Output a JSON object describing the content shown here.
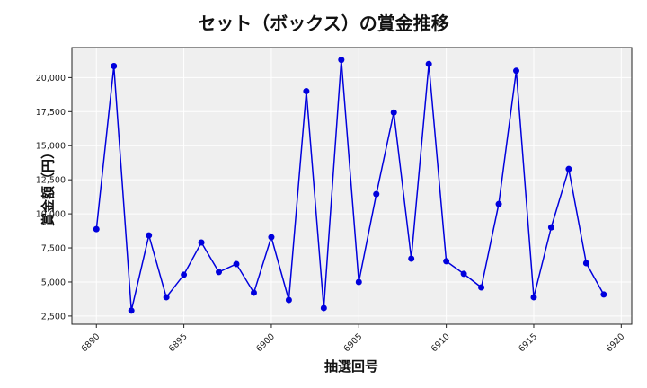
{
  "chart_data": {
    "type": "line",
    "title": "セット（ボックス）の賞金推移",
    "xlabel": "抽選回号",
    "ylabel": "賞金額（円）",
    "x": [
      6890,
      6891,
      6892,
      6893,
      6894,
      6895,
      6896,
      6897,
      6898,
      6899,
      6900,
      6901,
      6902,
      6903,
      6904,
      6905,
      6906,
      6907,
      6908,
      6909,
      6910,
      6911,
      6912,
      6913,
      6914,
      6915,
      6916,
      6917,
      6918,
      6919
    ],
    "series": [
      {
        "name": "セット（ボックス）",
        "color": "#0000dd",
        "values": [
          8880,
          20850,
          2900,
          8420,
          3880,
          5530,
          7900,
          5730,
          6320,
          4210,
          8290,
          3680,
          19000,
          3090,
          21300,
          5000,
          11450,
          17440,
          6710,
          21000,
          6520,
          5600,
          4600,
          10720,
          20500,
          3880,
          9010,
          13290,
          6380,
          4080
        ]
      }
    ],
    "xticks": [
      "6890",
      "6895",
      "6900",
      "6905",
      "6910",
      "6915",
      "6920"
    ],
    "yticks": [
      "2,500",
      "5,000",
      "7,500",
      "10,000",
      "12,500",
      "15,000",
      "17,500",
      "20,000"
    ],
    "xlim": [
      6888.6,
      6920.6
    ],
    "ylim": [
      1900,
      22200
    ],
    "grid": true,
    "background": "#efefef",
    "legend": null
  }
}
